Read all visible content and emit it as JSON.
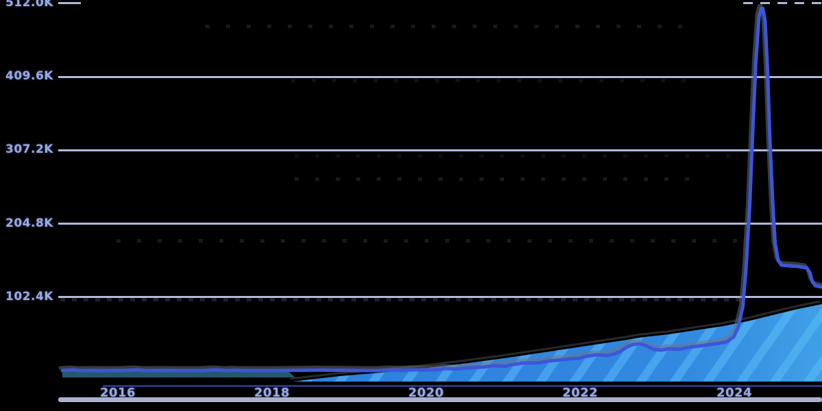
{
  "colors": {
    "background": "#000000",
    "line": "#3c56da",
    "line_shadow": "#70757c",
    "hatch_base": "#2e82dd",
    "hatch_stripe": "#46a0ec",
    "cyan_tint": "#55c4f2",
    "gridline": "#b9c3e8",
    "tick_label": "#9aa8e6",
    "axis_line": "#2b3d8e",
    "bottom_band": "#b6c0de"
  },
  "chart_data": {
    "type": "line",
    "title": "",
    "xlabel": "",
    "ylabel": "",
    "grid": "horizontal",
    "legend": "none",
    "xlim": [
      2015.2,
      2025.2
    ],
    "ylim": [
      0,
      512
    ],
    "y_unit": "K",
    "x_axis": {
      "ticks": [
        {
          "label": "2016",
          "value": 2016
        },
        {
          "label": "2018",
          "value": 2018
        },
        {
          "label": "2020",
          "value": 2020
        },
        {
          "label": "2022",
          "value": 2022
        },
        {
          "label": "2024",
          "value": 2024
        }
      ]
    },
    "y_axis": {
      "ticks": [
        {
          "label": "512.0K",
          "value": 512.0
        },
        {
          "label": "409.6K",
          "value": 409.6
        },
        {
          "label": "307.2K",
          "value": 307.2
        },
        {
          "label": "204.8K",
          "value": 204.8
        },
        {
          "label": "102.4K",
          "value": 102.4
        }
      ]
    },
    "series": [
      {
        "name": "main-line",
        "type": "line",
        "style": "solid-with-gray-shadow",
        "points": [
          [
            2015.28,
            0
          ],
          [
            2015.35,
            0.5
          ],
          [
            2015.41,
            1.0
          ],
          [
            2015.5,
            0
          ],
          [
            2015.7,
            0.2
          ],
          [
            2015.86,
            0
          ],
          [
            2016.1,
            0.3
          ],
          [
            2016.26,
            1.0
          ],
          [
            2016.35,
            0
          ],
          [
            2016.6,
            0.3
          ],
          [
            2016.8,
            0
          ],
          [
            2017.1,
            0
          ],
          [
            2017.24,
            1.0
          ],
          [
            2017.34,
            0.6
          ],
          [
            2017.41,
            0
          ],
          [
            2017.52,
            0.5
          ],
          [
            2017.59,
            0.2
          ],
          [
            2017.8,
            0
          ],
          [
            2017.99,
            0
          ],
          [
            2018.2,
            0.3
          ],
          [
            2018.35,
            0.4
          ],
          [
            2018.61,
            0.8
          ],
          [
            2018.8,
            0.5
          ],
          [
            2019.06,
            0.3
          ],
          [
            2019.25,
            0
          ],
          [
            2019.37,
            0
          ],
          [
            2019.46,
            0.4
          ],
          [
            2019.55,
            1.0
          ],
          [
            2019.68,
            0.5
          ],
          [
            2019.81,
            1.0
          ],
          [
            2020.12,
            1.0
          ],
          [
            2020.26,
            3.0
          ],
          [
            2020.39,
            2.2
          ],
          [
            2020.57,
            4.0
          ],
          [
            2020.75,
            5.0
          ],
          [
            2020.88,
            7.0
          ],
          [
            2021.01,
            6.0
          ],
          [
            2021.15,
            8.8
          ],
          [
            2021.28,
            10.8
          ],
          [
            2021.46,
            10.8
          ],
          [
            2021.59,
            13.5
          ],
          [
            2021.72,
            14.5
          ],
          [
            2021.86,
            16.3
          ],
          [
            2021.99,
            17.2
          ],
          [
            2022.08,
            20.0
          ],
          [
            2022.21,
            22.0
          ],
          [
            2022.35,
            21.0
          ],
          [
            2022.44,
            23.0
          ],
          [
            2022.52,
            26.8
          ],
          [
            2022.6,
            32.5
          ],
          [
            2022.68,
            36.3
          ],
          [
            2022.77,
            37.3
          ],
          [
            2022.86,
            34.4
          ],
          [
            2022.95,
            29.6
          ],
          [
            2023.06,
            28.7
          ],
          [
            2023.15,
            30.6
          ],
          [
            2023.28,
            29.6
          ],
          [
            2023.41,
            32.5
          ],
          [
            2023.55,
            34.4
          ],
          [
            2023.68,
            36.3
          ],
          [
            2023.81,
            38.2
          ],
          [
            2023.9,
            40.1
          ],
          [
            2023.99,
            46.8
          ],
          [
            2024.05,
            60.2
          ],
          [
            2024.11,
            88.8
          ],
          [
            2024.15,
            139.4
          ],
          [
            2024.2,
            230.2
          ],
          [
            2024.24,
            335.2
          ],
          [
            2024.28,
            430.8
          ],
          [
            2024.32,
            492.8
          ],
          [
            2024.35,
            505
          ],
          [
            2024.37,
            505
          ],
          [
            2024.4,
            488
          ],
          [
            2024.43,
            421.2
          ],
          [
            2024.46,
            325.7
          ],
          [
            2024.5,
            230.2
          ],
          [
            2024.53,
            177.7
          ],
          [
            2024.57,
            153.8
          ],
          [
            2024.61,
            147.1
          ],
          [
            2024.7,
            146.1
          ],
          [
            2024.83,
            145.2
          ],
          [
            2024.94,
            143.3
          ],
          [
            2024.98,
            136.6
          ],
          [
            2025.01,
            125.1
          ],
          [
            2025.05,
            118.4
          ],
          [
            2025.14,
            116.5
          ]
        ]
      },
      {
        "name": "hatched-area",
        "type": "area",
        "style": "diagonal-stripes",
        "points": [
          [
            2018.26,
            0
          ],
          [
            2018.88,
            7.6
          ],
          [
            2019.41,
            12.4
          ],
          [
            2019.95,
            18.1
          ],
          [
            2020.48,
            24.8
          ],
          [
            2021.01,
            32.5
          ],
          [
            2021.55,
            41.1
          ],
          [
            2022.08,
            49.7
          ],
          [
            2022.61,
            58.3
          ],
          [
            2022.79,
            61.6
          ],
          [
            2023.15,
            65.9
          ],
          [
            2023.5,
            71.6
          ],
          [
            2023.86,
            77.4
          ],
          [
            2024.21,
            85.0
          ],
          [
            2024.57,
            94.6
          ],
          [
            2024.83,
            101.2
          ],
          [
            2025.14,
            107.9
          ]
        ]
      }
    ]
  }
}
